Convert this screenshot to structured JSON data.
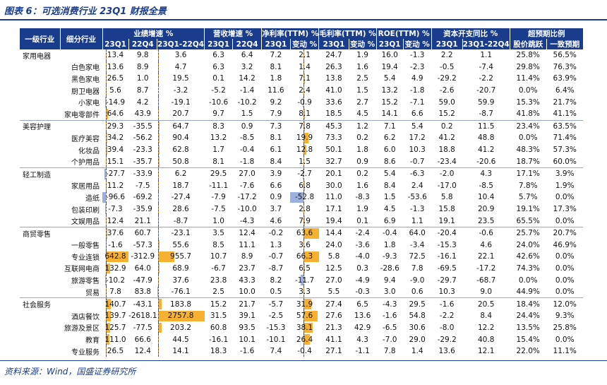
{
  "title": "图表 6：可选消费行业 23Q1 财报全景",
  "source": "资料来源：Wind，国盛证券研究所",
  "header": {
    "col_l1": "一级行业",
    "col_l2": "细分行业",
    "groups": [
      "业绩增速 %",
      "营收增速 %",
      "净利率(TTM) %",
      "毛利率(TTM) %",
      "ROE(TTM) %",
      "资本开支同比 %",
      "超预期比例"
    ],
    "sub": [
      "23Q1",
      "22Q4",
      "23Q1-22Q4",
      "23Q1",
      "22Q4",
      "23Q1",
      "变动 %",
      "23Q1",
      "变动 %",
      "23Q1",
      "变动 %",
      "23Q1",
      "23Q1-22Q4",
      "股价跳跃",
      "一致预期"
    ]
  },
  "bar_ranges": {
    "c0": [
      -96.6,
      642.8
    ],
    "c2": [
      -76.1,
      2757.8
    ],
    "c6": [
      -52.8,
      63.6
    ]
  },
  "rows": [
    {
      "cat": "家用电器",
      "sub": "",
      "v": [
        "13.4",
        "9.8",
        "3.6",
        "6.3",
        "6.4",
        "7.2",
        "2.1",
        "24.7",
        "1.9",
        "16.0",
        "-1.3",
        "2.2",
        "1.1",
        "25.8%",
        "56.5%"
      ],
      "n": [
        13.4,
        3.6,
        2.1
      ]
    },
    {
      "cat": "",
      "sub": "白色家电",
      "v": [
        "13.6",
        "8.9",
        "4.7",
        "6.3",
        "3.2",
        "8.1",
        "1.4",
        "26.3",
        "1.6",
        "19.4",
        "-2.3",
        "-0.5",
        "-7.4",
        "29.8%",
        "76.3%"
      ],
      "n": [
        13.6,
        4.7,
        1.4
      ]
    },
    {
      "cat": "",
      "sub": "黑色家电",
      "v": [
        "26.5",
        "1.0",
        "19.5",
        "0.1",
        "14.2",
        "1.8",
        "7.1",
        "13.8",
        "2.5",
        "5.4",
        "4.9",
        "-29.2",
        "-2.2",
        "11.4%",
        "63.9%"
      ],
      "n": [
        26.5,
        19.5,
        7.1
      ]
    },
    {
      "cat": "",
      "sub": "厨卫电器",
      "v": [
        "5.6",
        "8.7",
        "-3.2",
        "-5.2",
        "-1.4",
        "11.6",
        "2.4",
        "41.0",
        "1.5",
        "13.2",
        "-1.8",
        "-2.6",
        "-20.7",
        "0.0%",
        "6.4%"
      ],
      "n": [
        5.6,
        -3.2,
        2.4
      ]
    },
    {
      "cat": "",
      "sub": "小家电",
      "v": [
        "-14.9",
        "4.2",
        "-19.1",
        "-10.6",
        "-10.2",
        "9.2",
        "-0.9",
        "33.6",
        "2.7",
        "15.2",
        "-7.1",
        "59.0",
        "59.9",
        "15.3%",
        "21.7%"
      ],
      "n": [
        -14.9,
        -19.1,
        -0.9
      ]
    },
    {
      "cat": "",
      "sub": "家电零部件",
      "v": [
        "64.6",
        "43.9",
        "20.7",
        "9.7",
        "1.5",
        "7.9",
        "8.1",
        "18.5",
        "4.5",
        "14.1",
        "6.6",
        "15.2",
        "-8.7",
        "41.8%",
        "41.1%"
      ],
      "n": [
        64.6,
        20.7,
        8.1
      ]
    },
    {
      "cat": "美容护理",
      "sub": "",
      "v": [
        "29.3",
        "-35.5",
        "64.7",
        "8.3",
        "0.9",
        "7.3",
        "7.8",
        "45.3",
        "1.2",
        "7.1",
        "5.4",
        "0.2",
        "11.5",
        "23.4%",
        "63.5%"
      ],
      "n": [
        29.3,
        64.7,
        7.8
      ]
    },
    {
      "cat": "",
      "sub": "医疗美容",
      "v": [
        "34.2",
        "-56.2",
        "90.4",
        "13.2",
        "-8.5",
        "8.1",
        "19.9",
        "73.3",
        "0.2",
        "6.2",
        "17.2",
        "41.2",
        "48.8",
        "0.0%",
        "71.4%"
      ],
      "n": [
        34.2,
        90.4,
        19.9
      ]
    },
    {
      "cat": "",
      "sub": "化妆品",
      "v": [
        "39.4",
        "-23.3",
        "62.8",
        "1.7",
        "-0.4",
        "6.1",
        "12.8",
        "50.1",
        "1.8",
        "6.0",
        "10.3",
        "18.8",
        "41.2",
        "48.3%",
        "57.3%"
      ],
      "n": [
        39.4,
        62.8,
        12.8
      ]
    },
    {
      "cat": "",
      "sub": "个护用品",
      "v": [
        "15.1",
        "-35.7",
        "50.8",
        "8.1",
        "-1.8",
        "8.4",
        "1.5",
        "32.7",
        "0.9",
        "8.6",
        "-0.7",
        "-23.4",
        "-20.6",
        "18.7%",
        "60.0%"
      ],
      "n": [
        15.1,
        50.8,
        1.5
      ]
    },
    {
      "cat": "轻工制造",
      "sub": "",
      "v": [
        "-27.7",
        "-33.9",
        "6.2",
        "29.5",
        "27.0",
        "3.9",
        "-2.7",
        "20.1",
        "0.2",
        "5.4",
        "-6.3",
        "-2.0",
        "4.3",
        "17.1%",
        "3.9%"
      ],
      "n": [
        -27.7,
        6.2,
        -2.7
      ]
    },
    {
      "cat": "",
      "sub": "家居用品",
      "v": [
        "11.2",
        "-7.5",
        "18.7",
        "-11.1",
        "-7.6",
        "6.6",
        "6.8",
        "30.0",
        "1.6",
        "8.4",
        "2.4",
        "-17.0",
        "-8.5",
        "7.8%",
        "1.9%"
      ],
      "n": [
        11.2,
        18.7,
        6.8
      ]
    },
    {
      "cat": "",
      "sub": "造纸",
      "v": [
        "-96.6",
        "-69.2",
        "-27.4",
        "-7.9",
        "-17.2",
        "0.9",
        "-52.8",
        "11.0",
        "-8.3",
        "1.5",
        "-53.6",
        "5.8",
        "10.4",
        "5.7%",
        "0.0%"
      ],
      "n": [
        -96.6,
        -27.4,
        -52.8
      ]
    },
    {
      "cat": "",
      "sub": "包装印刷",
      "v": [
        "-7.3",
        "-35.9",
        "28.6",
        "-7.5",
        "-10.0",
        "3.7",
        "2.8",
        "17.1",
        "1.9",
        "4.5",
        "-1.3",
        "15.8",
        "20.9",
        "19.1%",
        "17.3%"
      ],
      "n": [
        -7.3,
        28.6,
        2.8
      ]
    },
    {
      "cat": "",
      "sub": "文娱用品",
      "v": [
        "12.4",
        "21.1",
        "-8.7",
        "1.0",
        "-4.3",
        "4.6",
        "7.9",
        "19.4",
        "0.1",
        "6.9",
        "1.1",
        "19.1",
        "23.5",
        "65.5%",
        "0.0%"
      ],
      "n": [
        12.4,
        -8.7,
        7.9
      ]
    },
    {
      "cat": "商贸零售",
      "sub": "",
      "v": [
        "37.6",
        "60.7",
        "-23.1",
        "3.5",
        "12.4",
        "-0.2",
        "63.6",
        "14.4",
        "-2.4",
        "-0.4",
        "64.0",
        "-20.4",
        "-0.6",
        "25.7%",
        "20.7%"
      ],
      "n": [
        37.6,
        -23.1,
        63.6
      ]
    },
    {
      "cat": "",
      "sub": "一般零售",
      "v": [
        "-1.6",
        "-57.3",
        "55.6",
        "8.5",
        "11.1",
        "1.3",
        "3.6",
        "24.0",
        "-3.6",
        "1.8",
        "-3.4",
        "-15.3",
        "4.6",
        "24.0%",
        "46.9%"
      ],
      "n": [
        -1.6,
        55.6,
        3.6
      ]
    },
    {
      "cat": "",
      "sub": "专业连锁",
      "v": [
        "642.8",
        "-312.9",
        "955.7",
        "10.7",
        "8.9",
        "-0.7",
        "66.3",
        "5.8",
        "-4.0",
        "-9.3",
        "72.5",
        "-16.1",
        "22.1",
        "42.6%",
        "0.0%"
      ],
      "n": [
        642.8,
        955.7,
        66.3
      ]
    },
    {
      "cat": "",
      "sub": "互联网电商",
      "v": [
        "132.9",
        "64.0",
        "68.9",
        "-6.7",
        "23.7",
        "-8.7",
        "6.5",
        "12.5",
        "0.3",
        "-28.6",
        "7.8",
        "-69.5",
        "-17.2",
        "74.3%",
        "0.0%"
      ],
      "n": [
        132.9,
        68.9,
        6.5
      ]
    },
    {
      "cat": "",
      "sub": "旅游零售",
      "v": [
        "-10.2",
        "-47.9",
        "37.6",
        "23.8",
        "43.3",
        "8.2",
        "-11.7",
        "27.0",
        "-4.9",
        "9.4",
        "-9.0",
        "-29.7",
        "-68.7",
        "0.0%",
        "0.0%"
      ],
      "n": [
        -10.2,
        37.6,
        -11.7
      ]
    },
    {
      "cat": "",
      "sub": "贸易",
      "v": [
        "7.8",
        "83.8",
        "-76.1",
        "2.5",
        "10.0",
        "0.5",
        "3.3",
        "5.5",
        "-0.3",
        "3.0",
        "0.6",
        "10.3",
        "9.0",
        "44.9%",
        "0.0%"
      ],
      "n": [
        7.8,
        -76.1,
        3.3
      ]
    },
    {
      "cat": "社会服务",
      "sub": "",
      "v": [
        "140.7",
        "-43.1",
        "183.8",
        "15.2",
        "21.7",
        "-5.7",
        "31.9",
        "27.4",
        "6.5",
        "-4.3",
        "29.5",
        "-1.6",
        "20.5",
        "18.4%",
        "12.0%"
      ],
      "n": [
        140.7,
        183.8,
        31.9
      ]
    },
    {
      "cat": "",
      "sub": "酒店餐饮",
      "v": [
        "139.7",
        "-2618.1",
        "2757.8",
        "31.5",
        "39.1",
        "-2.5",
        "57.6",
        "27.6",
        "13.6",
        "-1.6",
        "54.8",
        "-2.2",
        "8.4",
        "24.4%",
        "9.3%"
      ],
      "n": [
        139.7,
        2757.8,
        57.6
      ]
    },
    {
      "cat": "",
      "sub": "旅游及景区",
      "v": [
        "125.7",
        "-77.5",
        "203.2",
        "60.8",
        "93.5",
        "-15.3",
        "38.1",
        "21.3",
        "42.9",
        "-6.5",
        "30.6",
        "-8.0",
        "12.2",
        "13.5%",
        "25.8%"
      ],
      "n": [
        125.7,
        203.2,
        38.1
      ]
    },
    {
      "cat": "",
      "sub": "教育",
      "v": [
        "111.0",
        "66.6",
        "44.5",
        "-16.1",
        "10.1",
        "-10.1",
        "26.4",
        "41.1",
        "4.3",
        "-7.0",
        "29.0",
        "-29.2",
        "40.8",
        "15.4%",
        "0.0%"
      ],
      "n": [
        111.0,
        44.5,
        26.4
      ]
    },
    {
      "cat": "",
      "sub": "专业服务",
      "v": [
        "26.5",
        "12.4",
        "14.1",
        "18.3",
        "-1.6",
        "7.4",
        "-0.4",
        "27.1",
        "-1.1",
        "7.8",
        "1.4",
        "13.6",
        "12.1",
        "22.0%",
        "11.1%"
      ],
      "n": [
        26.5,
        14.1,
        -0.4
      ]
    }
  ]
}
